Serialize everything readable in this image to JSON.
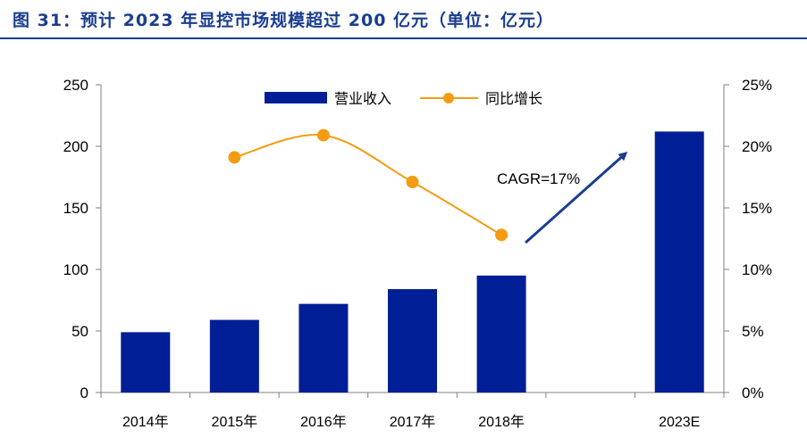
{
  "figure": {
    "title": "图 31：预计 2023 年显控市场规模超过 200 亿元（单位：亿元）"
  },
  "chart_data": {
    "type": "bar",
    "categories": [
      "2014年",
      "2015年",
      "2016年",
      "2017年",
      "2018年",
      "",
      "2023E"
    ],
    "series": [
      {
        "name": "营业收入",
        "kind": "bar",
        "axis": "left",
        "color": "#001e96",
        "values": [
          49,
          59,
          72,
          84,
          95,
          null,
          212
        ]
      },
      {
        "name": "同比增长",
        "kind": "line",
        "axis": "right",
        "color": "#f39c12",
        "values": [
          null,
          0.191,
          0.209,
          0.171,
          0.128,
          null,
          null
        ]
      }
    ],
    "y_left": {
      "lim": [
        0,
        250
      ],
      "ticks": [
        "0",
        "50",
        "100",
        "150",
        "200",
        "250"
      ]
    },
    "y_right": {
      "lim": [
        0,
        0.25
      ],
      "ticks": [
        "0%",
        "5%",
        "10%",
        "15%",
        "20%",
        "25%"
      ]
    },
    "annotation": {
      "text": "CAGR=17%",
      "arrow_color": "#1a3d8f"
    },
    "legend": {
      "position": "top"
    },
    "grid": false
  }
}
